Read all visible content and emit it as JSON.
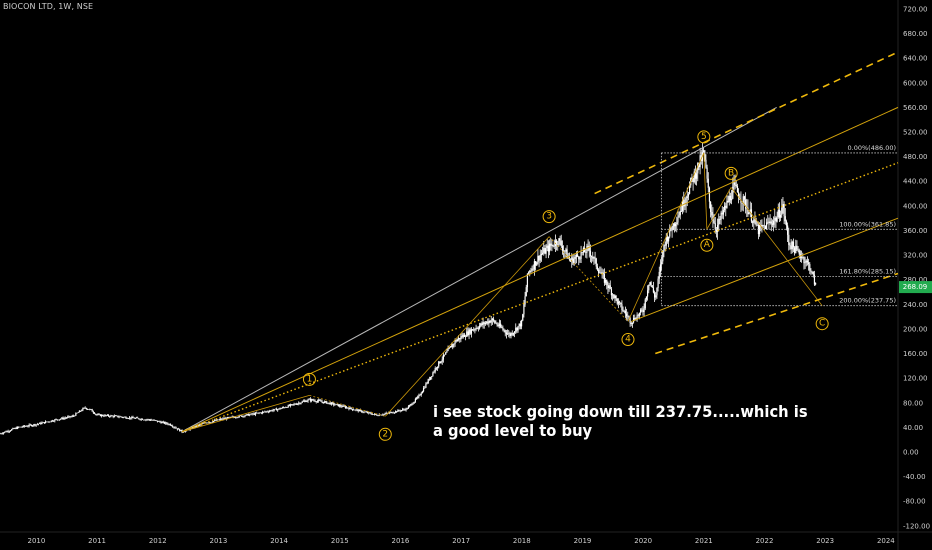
{
  "header": {
    "title": "BIOCON LTD, 1W, NSE"
  },
  "annotation": {
    "text": "i see stock going down till 237.75.....which is a good level to buy"
  },
  "colors": {
    "background": "#000000",
    "candles": "#ffffff",
    "trend": "#f0b90b",
    "gray_line": "#b8b8b8",
    "last_price": "#22ab4f"
  },
  "chart_data": {
    "type": "candlestick",
    "title": "BIOCON LTD, 1W, NSE",
    "xlabel": "",
    "ylabel": "",
    "x_ticks": [
      "2010",
      "2011",
      "2012",
      "2013",
      "2014",
      "2015",
      "2016",
      "2017",
      "2018",
      "2019",
      "2020",
      "2021",
      "2022",
      "2023",
      "2024"
    ],
    "y_ticks": [
      "720.00",
      "680.00",
      "640.00",
      "600.00",
      "560.00",
      "520.00",
      "480.00",
      "440.00",
      "400.00",
      "360.00",
      "320.00",
      "280.00",
      "240.00",
      "200.00",
      "160.00",
      "120.00",
      "80.00",
      "40.00",
      "0.00",
      "-40.00",
      "-80.00",
      "-120.00"
    ],
    "ylim": [
      -130,
      728
    ],
    "xlim": [
      2009.4,
      2024.2
    ],
    "last_price": {
      "value": 268,
      "label": "268.09"
    },
    "price_path": [
      [
        2009.4,
        30
      ],
      [
        2009.7,
        40
      ],
      [
        2010.0,
        45
      ],
      [
        2010.3,
        52
      ],
      [
        2010.6,
        58
      ],
      [
        2010.8,
        72
      ],
      [
        2010.9,
        68
      ],
      [
        2011.0,
        60
      ],
      [
        2011.3,
        58
      ],
      [
        2011.6,
        55
      ],
      [
        2011.9,
        52
      ],
      [
        2012.2,
        45
      ],
      [
        2012.4,
        33
      ],
      [
        2012.8,
        48
      ],
      [
        2013.2,
        56
      ],
      [
        2013.6,
        62
      ],
      [
        2014.0,
        70
      ],
      [
        2014.5,
        85
      ],
      [
        2014.8,
        80
      ],
      [
        2015.2,
        70
      ],
      [
        2015.6,
        60
      ],
      [
        2015.75,
        62
      ],
      [
        2016.1,
        70
      ],
      [
        2016.3,
        90
      ],
      [
        2016.6,
        140
      ],
      [
        2016.9,
        180
      ],
      [
        2017.2,
        200
      ],
      [
        2017.5,
        215
      ],
      [
        2017.8,
        190
      ],
      [
        2018.0,
        210
      ],
      [
        2018.1,
        290
      ],
      [
        2018.3,
        320
      ],
      [
        2018.6,
        345
      ],
      [
        2018.8,
        310
      ],
      [
        2019.1,
        330
      ],
      [
        2019.3,
        290
      ],
      [
        2019.6,
        240
      ],
      [
        2019.8,
        212
      ],
      [
        2020.0,
        230
      ],
      [
        2020.1,
        280
      ],
      [
        2020.2,
        250
      ],
      [
        2020.35,
        340
      ],
      [
        2020.6,
        390
      ],
      [
        2020.8,
        440
      ],
      [
        2021.0,
        486
      ],
      [
        2021.1,
        400
      ],
      [
        2021.2,
        362
      ],
      [
        2021.5,
        430
      ],
      [
        2021.7,
        400
      ],
      [
        2021.9,
        360
      ],
      [
        2022.2,
        380
      ],
      [
        2022.3,
        400
      ],
      [
        2022.4,
        340
      ],
      [
        2022.6,
        320
      ],
      [
        2022.75,
        300
      ],
      [
        2022.85,
        268
      ]
    ],
    "elliott_waves": [
      {
        "label": "1",
        "point": [
          2014.5,
          92
        ]
      },
      {
        "label": "2",
        "point": [
          2015.75,
          58
        ]
      },
      {
        "label": "3",
        "point": [
          2018.45,
          350
        ]
      },
      {
        "label": "4",
        "point": [
          2019.75,
          212
        ]
      },
      {
        "label": "5",
        "point": [
          2021.0,
          486
        ]
      },
      {
        "label": "A",
        "point": [
          2021.05,
          362
        ]
      },
      {
        "label": "B",
        "point": [
          2021.45,
          430
        ]
      },
      {
        "label": "C",
        "point": [
          2022.95,
          237.75
        ]
      }
    ],
    "fibonacci_levels": [
      {
        "label": "0.00%(486.00)",
        "value": 486.0
      },
      {
        "label": "100.00%(361.85)",
        "value": 361.85
      },
      {
        "label": "161.80%(285.15)",
        "value": 285.15
      },
      {
        "label": "200.00%(237.75)",
        "value": 237.75
      }
    ],
    "trend_lines": [
      {
        "style": "gray",
        "from": [
          2012.4,
          33
        ],
        "to": [
          2022.2,
          560
        ]
      },
      {
        "style": "solid",
        "from": [
          2012.4,
          33
        ],
        "to": [
          2024.2,
          560
        ]
      },
      {
        "style": "dotted",
        "from": [
          2012.4,
          33
        ],
        "to": [
          2024.2,
          470
        ]
      },
      {
        "style": "dashed",
        "from": [
          2019.2,
          420
        ],
        "to": [
          2024.2,
          650
        ]
      },
      {
        "style": "dashed",
        "from": [
          2020.2,
          160
        ],
        "to": [
          2024.2,
          290
        ]
      },
      {
        "style": "solid",
        "from": [
          2019.8,
          212
        ],
        "to": [
          2024.2,
          380
        ]
      }
    ]
  }
}
